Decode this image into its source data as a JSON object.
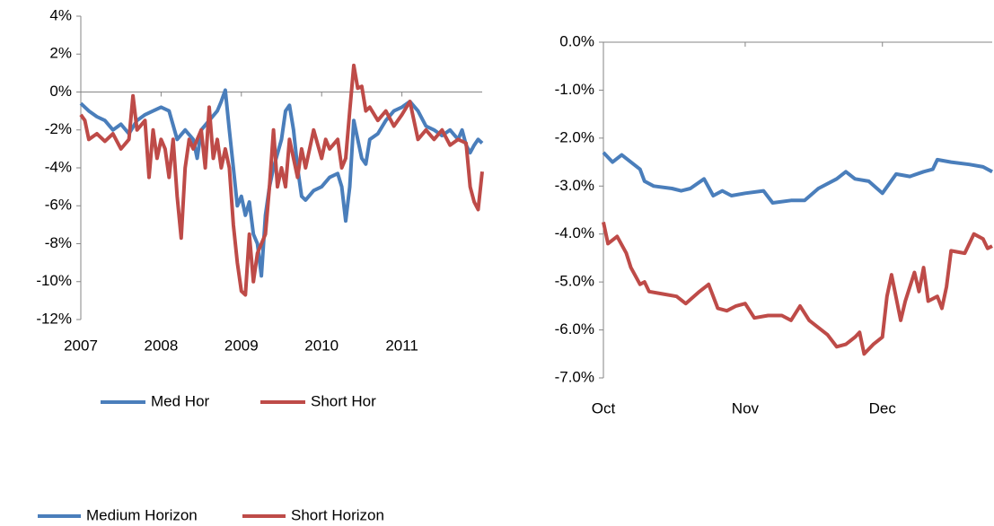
{
  "chart_data": [
    {
      "type": "line",
      "xlim": [
        2007,
        2012
      ],
      "xticks": [
        2007,
        2008,
        2009,
        2010,
        2011
      ],
      "ylim": [
        -12,
        4
      ],
      "yticks": [
        {
          "value": -12,
          "label": "-12%"
        },
        {
          "value": -10,
          "label": "-10%"
        },
        {
          "value": -8,
          "label": "-8%"
        },
        {
          "value": -6,
          "label": "-6%"
        },
        {
          "value": -4,
          "label": "-4%"
        },
        {
          "value": -2,
          "label": "-2%"
        },
        {
          "value": 0,
          "label": "0%"
        },
        {
          "value": 2,
          "label": "2%"
        },
        {
          "value": 4,
          "label": "4%"
        }
      ],
      "legend": "bottom",
      "series": [
        {
          "name": "Med Hor",
          "color": "#4a7ebb",
          "x": [
            2007.0,
            2007.1,
            2007.2,
            2007.3,
            2007.4,
            2007.5,
            2007.6,
            2007.7,
            2007.8,
            2007.9,
            2008.0,
            2008.1,
            2008.2,
            2008.3,
            2008.4,
            2008.45,
            2008.5,
            2008.6,
            2008.7,
            2008.75,
            2008.8,
            2008.85,
            2008.9,
            2008.95,
            2009.0,
            2009.05,
            2009.1,
            2009.15,
            2009.2,
            2009.25,
            2009.3,
            2009.35,
            2009.4,
            2009.5,
            2009.55,
            2009.6,
            2009.65,
            2009.7,
            2009.75,
            2009.8,
            2009.9,
            2010.0,
            2010.1,
            2010.2,
            2010.25,
            2010.3,
            2010.35,
            2010.4,
            2010.45,
            2010.5,
            2010.55,
            2010.6,
            2010.7,
            2010.8,
            2010.9,
            2011.0,
            2011.1,
            2011.2,
            2011.3,
            2011.4,
            2011.5,
            2011.6,
            2011.7,
            2011.75,
            2011.8,
            2011.85,
            2011.9,
            2011.95,
            2012.0
          ],
          "values": [
            -0.6,
            -1.0,
            -1.3,
            -1.5,
            -2.0,
            -1.7,
            -2.2,
            -1.5,
            -1.2,
            -1.0,
            -0.8,
            -1.0,
            -2.5,
            -2.0,
            -2.5,
            -3.5,
            -2.0,
            -1.5,
            -1.0,
            -0.5,
            0.1,
            -2.0,
            -4.0,
            -6.0,
            -5.5,
            -6.5,
            -5.8,
            -7.5,
            -8.0,
            -9.7,
            -6.5,
            -5.0,
            -4.0,
            -2.5,
            -1.0,
            -0.7,
            -2.0,
            -4.0,
            -5.5,
            -5.7,
            -5.2,
            -5.0,
            -4.5,
            -4.3,
            -5.0,
            -6.8,
            -5.0,
            -1.5,
            -2.5,
            -3.5,
            -3.8,
            -2.5,
            -2.2,
            -1.5,
            -1.0,
            -0.8,
            -0.5,
            -1.0,
            -1.8,
            -2.0,
            -2.3,
            -2.0,
            -2.5,
            -2.0,
            -2.8,
            -3.2,
            -2.8,
            -2.5,
            -2.7
          ]
        },
        {
          "name": "Short Hor",
          "color": "#be4b48",
          "x": [
            2007.0,
            2007.05,
            2007.1,
            2007.2,
            2007.3,
            2007.4,
            2007.5,
            2007.6,
            2007.65,
            2007.7,
            2007.8,
            2007.85,
            2007.9,
            2007.95,
            2008.0,
            2008.05,
            2008.1,
            2008.15,
            2008.2,
            2008.25,
            2008.3,
            2008.35,
            2008.4,
            2008.5,
            2008.55,
            2008.6,
            2008.65,
            2008.7,
            2008.75,
            2008.8,
            2008.85,
            2008.9,
            2008.95,
            2009.0,
            2009.05,
            2009.1,
            2009.15,
            2009.2,
            2009.3,
            2009.35,
            2009.4,
            2009.45,
            2009.5,
            2009.55,
            2009.6,
            2009.7,
            2009.75,
            2009.8,
            2009.9,
            2010.0,
            2010.05,
            2010.1,
            2010.2,
            2010.25,
            2010.3,
            2010.35,
            2010.4,
            2010.45,
            2010.5,
            2010.55,
            2010.6,
            2010.7,
            2010.8,
            2010.9,
            2011.0,
            2011.1,
            2011.2,
            2011.3,
            2011.4,
            2011.5,
            2011.6,
            2011.7,
            2011.8,
            2011.85,
            2011.9,
            2011.95,
            2012.0
          ],
          "values": [
            -1.2,
            -1.5,
            -2.5,
            -2.2,
            -2.6,
            -2.2,
            -3.0,
            -2.5,
            -0.2,
            -2.0,
            -1.5,
            -4.5,
            -2.0,
            -3.5,
            -2.5,
            -3.0,
            -4.5,
            -2.5,
            -5.5,
            -7.7,
            -4.0,
            -2.5,
            -3.0,
            -2.0,
            -4.0,
            -0.8,
            -3.5,
            -2.5,
            -4.0,
            -3.0,
            -4.0,
            -7.0,
            -9.0,
            -10.5,
            -10.7,
            -7.5,
            -10.0,
            -8.5,
            -7.5,
            -5.0,
            -2.0,
            -5.0,
            -4.0,
            -5.0,
            -2.5,
            -4.5,
            -3.0,
            -4.0,
            -2.0,
            -3.5,
            -2.5,
            -3.0,
            -2.5,
            -4.0,
            -3.5,
            -1.0,
            1.4,
            0.2,
            0.3,
            -1.0,
            -0.8,
            -1.5,
            -1.0,
            -1.8,
            -1.2,
            -0.5,
            -2.5,
            -2.0,
            -2.5,
            -2.0,
            -2.8,
            -2.5,
            -2.7,
            -5.0,
            -5.8,
            -6.2,
            -4.2
          ]
        }
      ]
    },
    {
      "type": "line",
      "xlim": [
        0,
        85
      ],
      "xticks": [
        {
          "value": 0,
          "label": "Oct"
        },
        {
          "value": 31,
          "label": "Nov"
        },
        {
          "value": 61,
          "label": "Dec"
        }
      ],
      "ylim": [
        -7,
        0
      ],
      "yticks": [
        {
          "value": -7,
          "label": "-7.0%"
        },
        {
          "value": -6,
          "label": "-6.0%"
        },
        {
          "value": -5,
          "label": "-5.0%"
        },
        {
          "value": -4,
          "label": "-4.0%"
        },
        {
          "value": -3,
          "label": "-3.0%"
        },
        {
          "value": -2,
          "label": "-2.0%"
        },
        {
          "value": -1,
          "label": "-1.0%"
        },
        {
          "value": 0,
          "label": "0.0%"
        }
      ],
      "legend": "bottom left",
      "series": [
        {
          "name": "Medium Horizon",
          "color": "#4a7ebb",
          "x": [
            0,
            2,
            4,
            8,
            9,
            11,
            15,
            17,
            19,
            22,
            24,
            26,
            28,
            31,
            35,
            37,
            41,
            44,
            47,
            51,
            53,
            55,
            58,
            61,
            64,
            67,
            70,
            72,
            73,
            76,
            80,
            83,
            85
          ],
          "values": [
            -2.3,
            -2.5,
            -2.35,
            -2.65,
            -2.9,
            -3.0,
            -3.05,
            -3.1,
            -3.05,
            -2.85,
            -3.2,
            -3.1,
            -3.2,
            -3.15,
            -3.1,
            -3.35,
            -3.3,
            -3.3,
            -3.05,
            -2.85,
            -2.7,
            -2.85,
            -2.9,
            -3.15,
            -2.75,
            -2.8,
            -2.7,
            -2.65,
            -2.45,
            -2.5,
            -2.55,
            -2.6,
            -2.7
          ]
        },
        {
          "name": "Short Horizon",
          "color": "#be4b48",
          "x": [
            0,
            1,
            3,
            5,
            6,
            8,
            9,
            10,
            13,
            16,
            18,
            21,
            23,
            25,
            27,
            29,
            31,
            33,
            36,
            39,
            41,
            43,
            45,
            47,
            49,
            51,
            53,
            55,
            56,
            57,
            59,
            61,
            62,
            63,
            65,
            66,
            68,
            69,
            70,
            71,
            73,
            74,
            75,
            76,
            79,
            81,
            83,
            84,
            85
          ],
          "values": [
            -3.75,
            -4.2,
            -4.05,
            -4.4,
            -4.7,
            -5.05,
            -5.0,
            -5.2,
            -5.25,
            -5.3,
            -5.45,
            -5.2,
            -5.05,
            -5.55,
            -5.6,
            -5.5,
            -5.45,
            -5.75,
            -5.7,
            -5.7,
            -5.8,
            -5.5,
            -5.8,
            -5.95,
            -6.1,
            -6.35,
            -6.3,
            -6.15,
            -6.05,
            -6.5,
            -6.3,
            -6.15,
            -5.3,
            -4.85,
            -5.8,
            -5.4,
            -4.8,
            -5.2,
            -4.7,
            -5.4,
            -5.3,
            -5.55,
            -5.1,
            -4.35,
            -4.4,
            -4.0,
            -4.1,
            -4.3,
            -4.25
          ]
        }
      ]
    }
  ]
}
